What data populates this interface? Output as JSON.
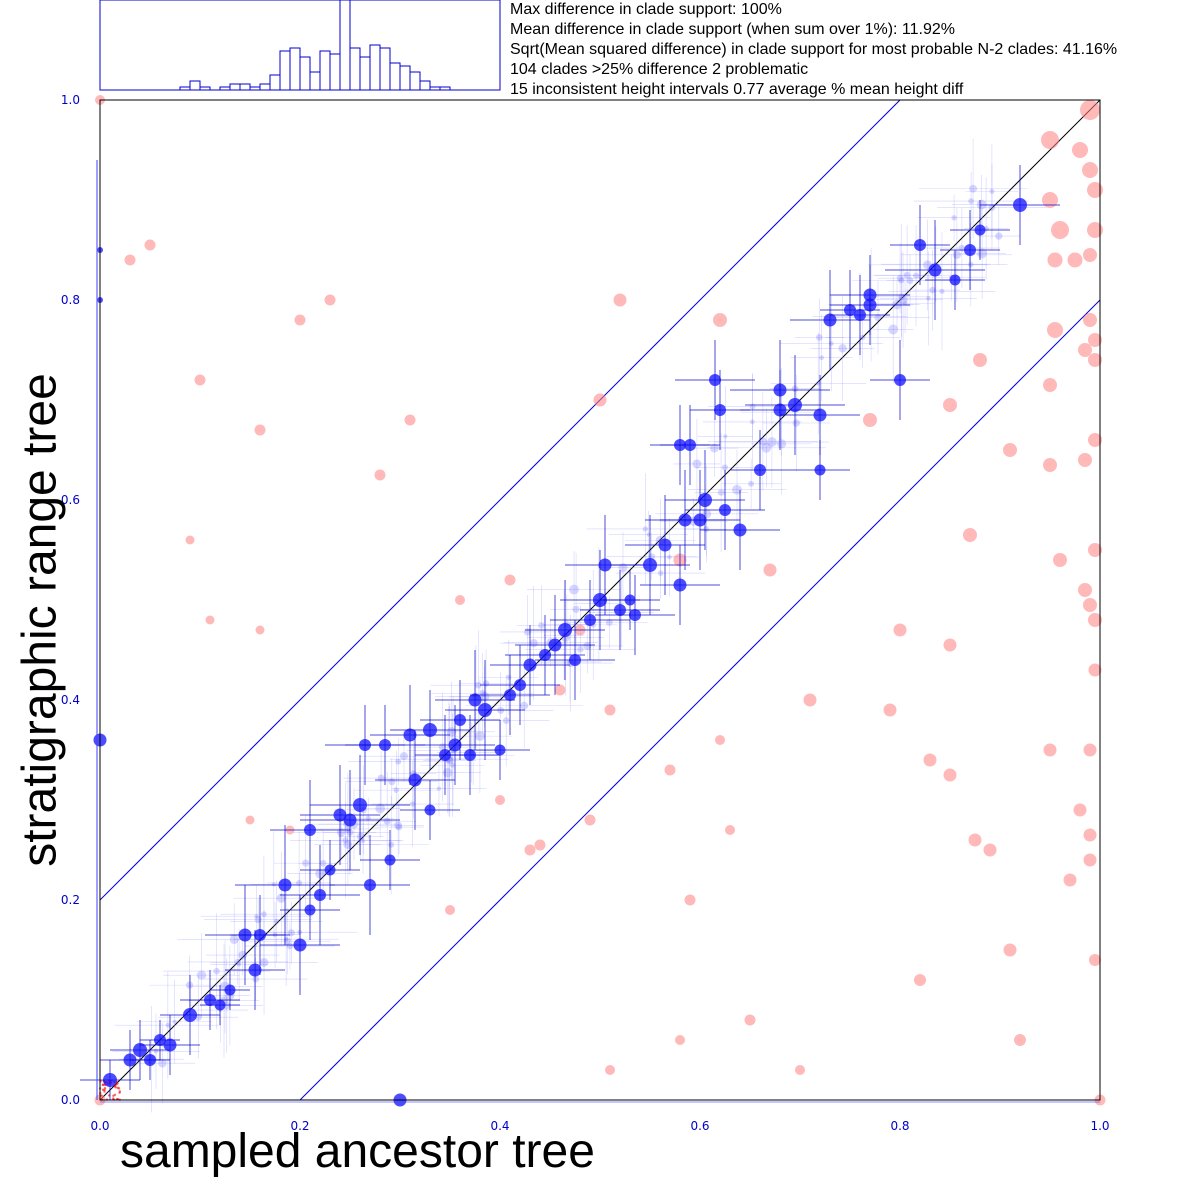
{
  "stats": [
    "Max difference in clade support: 100%",
    "Mean difference in clade support (when sum over 1%): 11.92%",
    "Sqrt(Mean squared difference) in clade support for most probable N-2 clades: 41.16%",
    "104 clades >25% difference 2 problematic",
    "15 inconsistent height intervals 0.77 average % mean height diff"
  ],
  "colors": {
    "axis": "#0000cc",
    "blue_point": "#1010ff",
    "red_point": "#ff8080",
    "diagonal": "#000000"
  },
  "chart_data": {
    "type": "scatter",
    "xlabel": "sampled ancestor tree",
    "ylabel": "stratigraphic range tree",
    "xlim": [
      0,
      1
    ],
    "ylim": [
      0,
      1
    ],
    "xticks": [
      "0.0",
      "0.2",
      "0.4",
      "0.6",
      "0.8",
      "1.0"
    ],
    "yticks": [
      "0.0",
      "0.2",
      "0.4",
      "0.6",
      "0.8",
      "1.0"
    ],
    "tolerance_band": 0.2,
    "histogram": {
      "bin_counts": [
        1,
        3,
        1,
        0,
        1,
        2,
        2,
        1,
        2,
        5,
        13,
        14,
        11,
        6,
        13,
        12,
        30,
        14,
        11,
        15,
        14,
        9,
        8,
        6,
        3,
        1,
        1
      ]
    },
    "blue_series": [
      [
        0.01,
        0.02,
        14,
        0.03,
        0.02
      ],
      [
        0.03,
        0.04,
        13,
        0.03,
        0.03
      ],
      [
        0.04,
        0.05,
        14,
        0.03,
        0.03
      ],
      [
        0.05,
        0.04,
        12,
        0.02,
        0.02
      ],
      [
        0.06,
        0.06,
        12,
        0.02,
        0.02
      ],
      [
        0.07,
        0.055,
        13,
        0.03,
        0.03
      ],
      [
        0.09,
        0.085,
        14,
        0.03,
        0.04
      ],
      [
        0.11,
        0.1,
        12,
        0.03,
        0.03
      ],
      [
        0.12,
        0.095,
        11,
        0.02,
        0.02
      ],
      [
        0.13,
        0.11,
        11,
        0.02,
        0.02
      ],
      [
        0.145,
        0.165,
        13,
        0.04,
        0.05
      ],
      [
        0.16,
        0.165,
        12,
        0.03,
        0.04
      ],
      [
        0.155,
        0.13,
        13,
        0.03,
        0.04
      ],
      [
        0.185,
        0.215,
        13,
        0.05,
        0.06
      ],
      [
        0.2,
        0.155,
        13,
        0.04,
        0.05
      ],
      [
        0.22,
        0.205,
        12,
        0.04,
        0.05
      ],
      [
        0.21,
        0.27,
        12,
        0.04,
        0.05
      ],
      [
        0.24,
        0.285,
        13,
        0.04,
        0.05
      ],
      [
        0.25,
        0.28,
        13,
        0.05,
        0.05
      ],
      [
        0.26,
        0.295,
        14,
        0.05,
        0.05
      ],
      [
        0.27,
        0.215,
        12,
        0.04,
        0.05
      ],
      [
        0.265,
        0.355,
        12,
        0.04,
        0.04
      ],
      [
        0.285,
        0.355,
        12,
        0.04,
        0.04
      ],
      [
        0.31,
        0.365,
        13,
        0.04,
        0.05
      ],
      [
        0.315,
        0.32,
        13,
        0.04,
        0.05
      ],
      [
        0.33,
        0.37,
        14,
        0.04,
        0.04
      ],
      [
        0.345,
        0.345,
        12,
        0.03,
        0.04
      ],
      [
        0.355,
        0.355,
        13,
        0.04,
        0.04
      ],
      [
        0.36,
        0.38,
        12,
        0.04,
        0.04
      ],
      [
        0.37,
        0.345,
        12,
        0.03,
        0.04
      ],
      [
        0.375,
        0.4,
        13,
        0.04,
        0.05
      ],
      [
        0.385,
        0.39,
        14,
        0.04,
        0.05
      ],
      [
        0.41,
        0.405,
        12,
        0.04,
        0.04
      ],
      [
        0.42,
        0.415,
        12,
        0.04,
        0.04
      ],
      [
        0.43,
        0.435,
        13,
        0.04,
        0.04
      ],
      [
        0.445,
        0.445,
        12,
        0.04,
        0.04
      ],
      [
        0.455,
        0.455,
        13,
        0.04,
        0.05
      ],
      [
        0.465,
        0.47,
        14,
        0.04,
        0.05
      ],
      [
        0.475,
        0.44,
        12,
        0.04,
        0.04
      ],
      [
        0.49,
        0.48,
        12,
        0.04,
        0.04
      ],
      [
        0.5,
        0.5,
        14,
        0.04,
        0.05
      ],
      [
        0.505,
        0.535,
        13,
        0.04,
        0.05
      ],
      [
        0.52,
        0.49,
        12,
        0.04,
        0.04
      ],
      [
        0.535,
        0.485,
        12,
        0.04,
        0.04
      ],
      [
        0.55,
        0.535,
        14,
        0.04,
        0.05
      ],
      [
        0.565,
        0.555,
        13,
        0.04,
        0.05
      ],
      [
        0.58,
        0.515,
        13,
        0.04,
        0.04
      ],
      [
        0.585,
        0.58,
        13,
        0.04,
        0.05
      ],
      [
        0.6,
        0.58,
        13,
        0.04,
        0.05
      ],
      [
        0.605,
        0.6,
        14,
        0.04,
        0.05
      ],
      [
        0.625,
        0.59,
        12,
        0.04,
        0.04
      ],
      [
        0.64,
        0.57,
        13,
        0.04,
        0.04
      ],
      [
        0.615,
        0.72,
        12,
        0.04,
        0.04
      ],
      [
        0.62,
        0.69,
        12,
        0.03,
        0.04
      ],
      [
        0.58,
        0.655,
        12,
        0.03,
        0.04
      ],
      [
        0.59,
        0.655,
        12,
        0.03,
        0.04
      ],
      [
        0.68,
        0.71,
        13,
        0.05,
        0.05
      ],
      [
        0.68,
        0.69,
        13,
        0.04,
        0.04
      ],
      [
        0.695,
        0.695,
        14,
        0.05,
        0.05
      ],
      [
        0.72,
        0.685,
        13,
        0.04,
        0.04
      ],
      [
        0.73,
        0.78,
        13,
        0.04,
        0.05
      ],
      [
        0.75,
        0.79,
        12,
        0.03,
        0.04
      ],
      [
        0.76,
        0.785,
        12,
        0.03,
        0.04
      ],
      [
        0.77,
        0.795,
        13,
        0.04,
        0.04
      ],
      [
        0.8,
        0.72,
        12,
        0.03,
        0.04
      ],
      [
        0.835,
        0.83,
        13,
        0.05,
        0.05
      ],
      [
        0.82,
        0.855,
        12,
        0.03,
        0.04
      ],
      [
        0.87,
        0.85,
        12,
        0.03,
        0.04
      ],
      [
        0.92,
        0.895,
        14,
        0.04,
        0.04
      ],
      [
        0.77,
        0.805,
        13,
        0.04,
        0.04
      ],
      [
        0.88,
        0.87,
        11,
        0.03,
        0.03
      ],
      [
        0.855,
        0.82,
        11,
        0.03,
        0.03
      ],
      [
        0.66,
        0.63,
        12,
        0.03,
        0.04
      ],
      [
        0.72,
        0.63,
        11,
        0.03,
        0.03
      ],
      [
        0.53,
        0.5,
        11,
        0.03,
        0.03
      ],
      [
        0.4,
        0.35,
        11,
        0.03,
        0.03
      ],
      [
        0.33,
        0.29,
        11,
        0.03,
        0.03
      ],
      [
        0.29,
        0.24,
        11,
        0.03,
        0.03
      ],
      [
        0.21,
        0.19,
        11,
        0.03,
        0.03
      ],
      [
        0.23,
        0.23,
        11,
        0.03,
        0.03
      ],
      [
        0.0,
        0.36,
        13,
        0.0,
        0.0
      ],
      [
        0.3,
        0.0,
        13,
        0.0,
        0.0
      ],
      [
        0.0,
        0.8,
        6,
        0.0,
        0.0
      ],
      [
        0.0,
        0.85,
        6,
        0.0,
        0.0
      ]
    ],
    "red_series": [
      [
        0.0,
        1.0,
        8
      ],
      [
        0.0,
        0.0,
        9
      ],
      [
        0.99,
        0.99,
        18
      ],
      [
        0.95,
        0.96,
        16
      ],
      [
        0.98,
        0.95,
        14
      ],
      [
        0.99,
        0.93,
        14
      ],
      [
        0.995,
        0.91,
        14
      ],
      [
        0.95,
        0.9,
        14
      ],
      [
        0.96,
        0.87,
        16
      ],
      [
        0.995,
        0.87,
        14
      ],
      [
        0.955,
        0.84,
        13
      ],
      [
        0.975,
        0.84,
        13
      ],
      [
        0.99,
        0.845,
        12
      ],
      [
        0.99,
        0.78,
        12
      ],
      [
        0.955,
        0.77,
        14
      ],
      [
        0.88,
        0.74,
        12
      ],
      [
        0.995,
        0.76,
        12
      ],
      [
        0.985,
        0.75,
        12
      ],
      [
        0.995,
        0.74,
        12
      ],
      [
        0.95,
        0.715,
        12
      ],
      [
        0.85,
        0.695,
        12
      ],
      [
        0.995,
        0.66,
        12
      ],
      [
        0.985,
        0.64,
        12
      ],
      [
        0.91,
        0.65,
        12
      ],
      [
        0.95,
        0.635,
        12
      ],
      [
        0.87,
        0.565,
        12
      ],
      [
        0.96,
        0.54,
        12
      ],
      [
        0.995,
        0.55,
        12
      ],
      [
        0.985,
        0.51,
        12
      ],
      [
        0.995,
        0.48,
        12
      ],
      [
        0.99,
        0.495,
        12
      ],
      [
        0.8,
        0.47,
        11
      ],
      [
        0.85,
        0.455,
        11
      ],
      [
        0.995,
        0.43,
        11
      ],
      [
        0.99,
        0.35,
        11
      ],
      [
        0.95,
        0.35,
        11
      ],
      [
        0.71,
        0.4,
        11
      ],
      [
        0.79,
        0.39,
        11
      ],
      [
        0.83,
        0.34,
        11
      ],
      [
        0.85,
        0.325,
        11
      ],
      [
        0.98,
        0.29,
        11
      ],
      [
        0.99,
        0.265,
        11
      ],
      [
        0.875,
        0.26,
        11
      ],
      [
        0.89,
        0.25,
        11
      ],
      [
        0.99,
        0.24,
        11
      ],
      [
        0.97,
        0.22,
        11
      ],
      [
        0.995,
        0.14,
        10
      ],
      [
        0.91,
        0.15,
        11
      ],
      [
        0.82,
        0.12,
        10
      ],
      [
        0.92,
        0.06,
        10
      ],
      [
        0.65,
        0.08,
        9
      ],
      [
        0.5,
        0.7,
        11
      ],
      [
        0.52,
        0.8,
        11
      ],
      [
        0.62,
        0.78,
        12
      ],
      [
        0.77,
        0.68,
        12
      ],
      [
        0.03,
        0.84,
        9
      ],
      [
        0.05,
        0.855,
        9
      ],
      [
        0.2,
        0.78,
        9
      ],
      [
        0.23,
        0.8,
        9
      ],
      [
        0.1,
        0.72,
        9
      ],
      [
        0.31,
        0.68,
        9
      ],
      [
        0.16,
        0.67,
        9
      ],
      [
        0.28,
        0.625,
        9
      ],
      [
        0.41,
        0.52,
        9
      ],
      [
        0.58,
        0.54,
        11
      ],
      [
        0.67,
        0.53,
        11
      ],
      [
        0.46,
        0.41,
        9
      ],
      [
        0.51,
        0.39,
        9
      ],
      [
        0.57,
        0.33,
        9
      ],
      [
        0.49,
        0.28,
        9
      ],
      [
        0.44,
        0.255,
        9
      ],
      [
        0.43,
        0.25,
        9
      ],
      [
        0.59,
        0.2,
        9
      ],
      [
        0.4,
        0.3,
        8
      ],
      [
        0.58,
        0.06,
        8
      ],
      [
        0.51,
        0.03,
        8
      ],
      [
        0.7,
        0.03,
        8
      ],
      [
        0.35,
        0.19,
        8
      ],
      [
        0.48,
        0.47,
        9
      ],
      [
        0.36,
        0.5,
        8
      ],
      [
        0.09,
        0.56,
        7
      ],
      [
        0.16,
        0.47,
        7
      ],
      [
        0.11,
        0.48,
        7
      ],
      [
        0.19,
        0.27,
        7
      ],
      [
        0.15,
        0.28,
        7
      ],
      [
        1.0,
        0.0,
        9
      ],
      [
        0.62,
        0.36,
        8
      ],
      [
        0.63,
        0.27,
        8
      ]
    ]
  }
}
